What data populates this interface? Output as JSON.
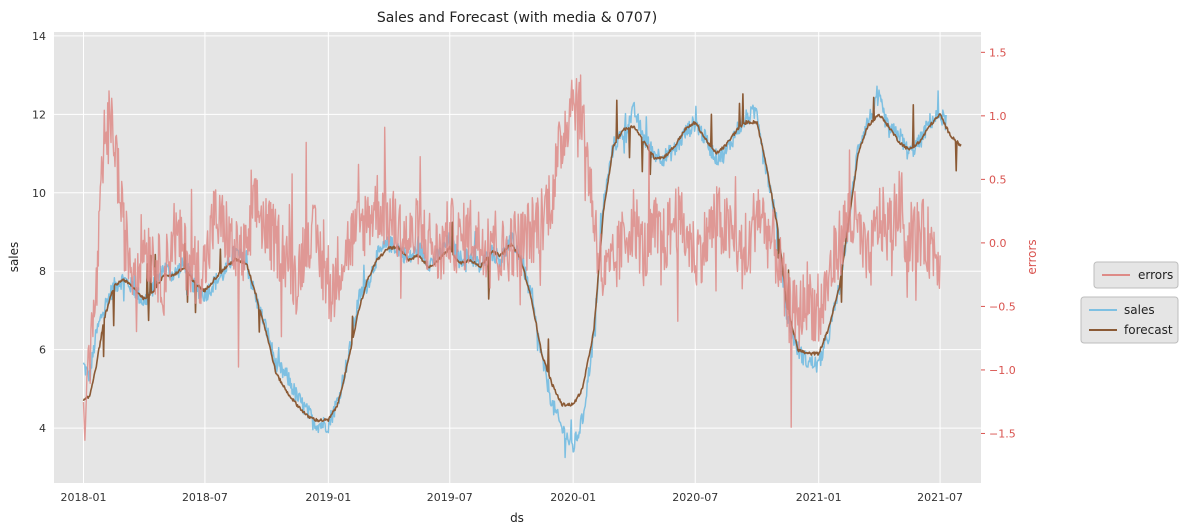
{
  "chart_data": {
    "type": "line",
    "title": "Sales and Forecast (with media & 0707)",
    "xlabel": "ds",
    "ylabel_left": "sales",
    "ylabel_right": "errors",
    "x_ticks": [
      "2018-01",
      "2018-07",
      "2019-01",
      "2019-07",
      "2020-01",
      "2020-07",
      "2021-01",
      "2021-07"
    ],
    "xlim": [
      "2017-11-18",
      "2021-08-31"
    ],
    "ylim_left": [
      2.6,
      14.1
    ],
    "ylim_right": [
      -1.89,
      1.66
    ],
    "yticks_left": [
      4,
      6,
      8,
      10,
      12,
      14
    ],
    "yticks_right": [
      -1.5,
      -1.0,
      -0.5,
      0.0,
      0.5,
      1.0,
      1.5
    ],
    "ytick_labels_right": [
      "−1.5",
      "−1.0",
      "−0.5",
      "0.0",
      "0.5",
      "1.0",
      "1.5"
    ],
    "grid": true,
    "colors": {
      "background": "#e5e5e5",
      "grid": "#ffffff",
      "sales": "#7ec0e2",
      "forecast": "#8b5a35",
      "errors": "#de8b87",
      "right_axis_text": "#d9534f"
    },
    "legends": [
      {
        "placement": "right",
        "entries": [
          "errors"
        ]
      },
      {
        "placement": "right",
        "entries": [
          "sales",
          "forecast"
        ]
      }
    ],
    "series": [
      {
        "name": "sales",
        "axis": "left",
        "x": [
          "2018-01-01",
          "2018-01-10",
          "2018-01-20",
          "2018-02-01",
          "2018-02-15",
          "2018-03-01",
          "2018-03-15",
          "2018-04-01",
          "2018-04-15",
          "2018-05-01",
          "2018-05-15",
          "2018-06-01",
          "2018-06-15",
          "2018-07-01",
          "2018-07-15",
          "2018-08-01",
          "2018-08-15",
          "2018-09-01",
          "2018-09-15",
          "2018-10-01",
          "2018-10-15",
          "2018-11-01",
          "2018-11-15",
          "2018-12-01",
          "2018-12-15",
          "2019-01-01",
          "2019-01-15",
          "2019-02-01",
          "2019-02-15",
          "2019-03-01",
          "2019-03-15",
          "2019-04-01",
          "2019-04-15",
          "2019-05-01",
          "2019-05-15",
          "2019-06-01",
          "2019-06-15",
          "2019-07-01",
          "2019-07-15",
          "2019-08-01",
          "2019-08-15",
          "2019-09-01",
          "2019-09-15",
          "2019-10-01",
          "2019-10-15",
          "2019-11-01",
          "2019-11-15",
          "2019-12-01",
          "2019-12-15",
          "2020-01-01",
          "2020-01-15",
          "2020-02-01",
          "2020-02-15",
          "2020-03-01",
          "2020-03-15",
          "2020-04-01",
          "2020-04-15",
          "2020-05-01",
          "2020-05-15",
          "2020-06-01",
          "2020-06-15",
          "2020-07-01",
          "2020-07-15",
          "2020-08-01",
          "2020-08-15",
          "2020-09-01",
          "2020-09-15",
          "2020-10-01",
          "2020-10-15",
          "2020-11-01",
          "2020-11-15",
          "2020-12-01",
          "2020-12-15",
          "2021-01-01",
          "2021-01-15",
          "2021-02-01",
          "2021-02-15",
          "2021-03-01",
          "2021-03-15",
          "2021-04-01",
          "2021-04-15",
          "2021-05-01",
          "2021-05-15",
          "2021-06-01",
          "2021-06-15",
          "2021-07-01",
          "2021-07-10"
        ],
        "values": [
          5.6,
          5.3,
          6.4,
          7.1,
          7.6,
          7.8,
          7.6,
          7.2,
          7.6,
          8.1,
          7.9,
          8.2,
          7.6,
          7.4,
          7.7,
          8.0,
          8.5,
          8.2,
          7.3,
          6.5,
          5.6,
          5.3,
          4.8,
          4.4,
          4.1,
          4.1,
          4.7,
          5.9,
          7.3,
          7.7,
          8.4,
          8.7,
          8.6,
          8.3,
          8.6,
          8.2,
          8.4,
          8.8,
          8.3,
          8.4,
          8.1,
          8.5,
          8.3,
          8.8,
          8.4,
          7.2,
          5.8,
          4.6,
          4.0,
          3.5,
          4.2,
          6.4,
          9.7,
          11.2,
          11.5,
          12.1,
          11.4,
          11.0,
          10.9,
          11.1,
          11.5,
          11.8,
          11.4,
          10.9,
          11.0,
          11.6,
          11.9,
          12.1,
          10.6,
          9.1,
          6.8,
          6.0,
          5.7,
          5.6,
          6.3,
          7.6,
          9.3,
          11.2,
          11.8,
          12.4,
          11.6,
          11.5,
          11.0,
          11.3,
          11.8,
          12.0,
          11.8
        ]
      },
      {
        "name": "forecast",
        "axis": "left",
        "x": [
          "2018-01-01",
          "2018-01-10",
          "2018-01-20",
          "2018-02-01",
          "2018-02-15",
          "2018-03-01",
          "2018-03-15",
          "2018-04-01",
          "2018-04-15",
          "2018-05-01",
          "2018-05-15",
          "2018-06-01",
          "2018-06-15",
          "2018-07-01",
          "2018-07-15",
          "2018-08-01",
          "2018-08-15",
          "2018-09-01",
          "2018-09-15",
          "2018-10-01",
          "2018-10-15",
          "2018-11-01",
          "2018-11-15",
          "2018-12-01",
          "2018-12-15",
          "2019-01-01",
          "2019-01-15",
          "2019-02-01",
          "2019-02-15",
          "2019-03-01",
          "2019-03-15",
          "2019-04-01",
          "2019-04-15",
          "2019-05-01",
          "2019-05-15",
          "2019-06-01",
          "2019-06-15",
          "2019-07-01",
          "2019-07-15",
          "2019-08-01",
          "2019-08-15",
          "2019-09-01",
          "2019-09-15",
          "2019-10-01",
          "2019-10-15",
          "2019-11-01",
          "2019-11-15",
          "2019-12-01",
          "2019-12-15",
          "2020-01-01",
          "2020-01-15",
          "2020-02-01",
          "2020-02-15",
          "2020-03-01",
          "2020-03-15",
          "2020-04-01",
          "2020-04-15",
          "2020-05-01",
          "2020-05-15",
          "2020-06-01",
          "2020-06-15",
          "2020-07-01",
          "2020-07-15",
          "2020-08-01",
          "2020-08-15",
          "2020-09-01",
          "2020-09-15",
          "2020-10-01",
          "2020-10-15",
          "2020-11-01",
          "2020-11-15",
          "2020-12-01",
          "2020-12-15",
          "2021-01-01",
          "2021-01-15",
          "2021-02-01",
          "2021-02-15",
          "2021-03-01",
          "2021-03-15",
          "2021-04-01",
          "2021-04-15",
          "2021-05-01",
          "2021-05-15",
          "2021-06-01",
          "2021-06-15",
          "2021-07-01",
          "2021-07-15",
          "2021-08-01"
        ],
        "values": [
          4.7,
          4.8,
          5.6,
          6.8,
          7.6,
          7.8,
          7.6,
          7.3,
          7.5,
          7.9,
          7.9,
          8.1,
          7.7,
          7.5,
          7.8,
          8.1,
          8.3,
          8.2,
          7.4,
          6.4,
          5.4,
          4.9,
          4.6,
          4.3,
          4.2,
          4.2,
          4.6,
          5.8,
          7.0,
          7.8,
          8.3,
          8.6,
          8.6,
          8.3,
          8.4,
          8.1,
          8.3,
          8.6,
          8.2,
          8.3,
          8.1,
          8.5,
          8.4,
          8.7,
          8.3,
          7.2,
          5.9,
          5.1,
          4.6,
          4.6,
          5.0,
          6.5,
          9.5,
          11.2,
          11.6,
          11.7,
          11.3,
          10.9,
          10.9,
          11.2,
          11.6,
          11.8,
          11.4,
          11.0,
          11.2,
          11.6,
          11.8,
          11.8,
          10.7,
          9.1,
          7.1,
          6.0,
          5.9,
          5.9,
          6.5,
          7.6,
          9.3,
          11.0,
          11.7,
          12.0,
          11.7,
          11.3,
          11.1,
          11.3,
          11.7,
          12.0,
          11.5,
          11.2
        ]
      },
      {
        "name": "errors",
        "axis": "right",
        "x": [
          "2018-01-01",
          "2018-01-10",
          "2018-01-20",
          "2018-02-01",
          "2018-02-15",
          "2018-03-01",
          "2018-03-15",
          "2018-04-01",
          "2018-04-15",
          "2018-05-01",
          "2018-05-15",
          "2018-06-01",
          "2018-06-15",
          "2018-07-01",
          "2018-07-15",
          "2018-08-01",
          "2018-08-15",
          "2018-09-01",
          "2018-09-15",
          "2018-10-01",
          "2018-10-15",
          "2018-11-01",
          "2018-11-15",
          "2018-12-01",
          "2018-12-15",
          "2019-01-01",
          "2019-01-15",
          "2019-02-01",
          "2019-02-15",
          "2019-03-01",
          "2019-03-15",
          "2019-04-01",
          "2019-04-15",
          "2019-05-01",
          "2019-05-15",
          "2019-06-01",
          "2019-06-15",
          "2019-07-01",
          "2019-07-15",
          "2019-08-01",
          "2019-08-15",
          "2019-09-01",
          "2019-09-15",
          "2019-10-01",
          "2019-10-15",
          "2019-11-01",
          "2019-11-15",
          "2019-12-01",
          "2019-12-15",
          "2020-01-01",
          "2020-01-15",
          "2020-02-01",
          "2020-02-15",
          "2020-03-01",
          "2020-03-15",
          "2020-04-01",
          "2020-04-15",
          "2020-05-01",
          "2020-05-15",
          "2020-06-01",
          "2020-06-15",
          "2020-07-01",
          "2020-07-15",
          "2020-08-01",
          "2020-08-15",
          "2020-09-01",
          "2020-09-15",
          "2020-10-01",
          "2020-10-15",
          "2020-11-01",
          "2020-11-15",
          "2020-12-01",
          "2020-12-15",
          "2021-01-01",
          "2021-01-15",
          "2021-02-01",
          "2021-02-15",
          "2021-03-01",
          "2021-03-15",
          "2021-04-01",
          "2021-04-15",
          "2021-05-01",
          "2021-05-15",
          "2021-06-01",
          "2021-06-15",
          "2021-07-01"
        ],
        "values": [
          -1.5,
          -0.9,
          -0.4,
          0.8,
          0.9,
          0.1,
          -0.2,
          0.0,
          -0.1,
          -0.3,
          0.1,
          -0.1,
          -0.2,
          -0.2,
          0.2,
          0.1,
          -0.1,
          -0.1,
          0.3,
          0.1,
          0.0,
          -0.1,
          -0.3,
          0.1,
          0.0,
          -0.4,
          -0.2,
          0.0,
          0.1,
          0.2,
          0.3,
          0.2,
          0.1,
          0.0,
          0.1,
          0.0,
          -0.1,
          0.1,
          0.0,
          0.1,
          0.0,
          0.1,
          -0.1,
          0.0,
          0.0,
          0.1,
          0.2,
          0.4,
          0.8,
          1.2,
          1.0,
          0.2,
          -0.3,
          -0.2,
          0.0,
          0.2,
          -0.1,
          0.1,
          0.0,
          0.2,
          0.1,
          -0.1,
          0.0,
          0.2,
          0.1,
          0.0,
          -0.2,
          0.3,
          0.1,
          -0.1,
          -0.5,
          -0.6,
          -0.4,
          -0.6,
          -0.3,
          0.0,
          0.2,
          0.1,
          -0.2,
          0.2,
          0.1,
          0.3,
          0.0,
          0.1,
          0.0,
          -0.1
        ]
      }
    ]
  }
}
